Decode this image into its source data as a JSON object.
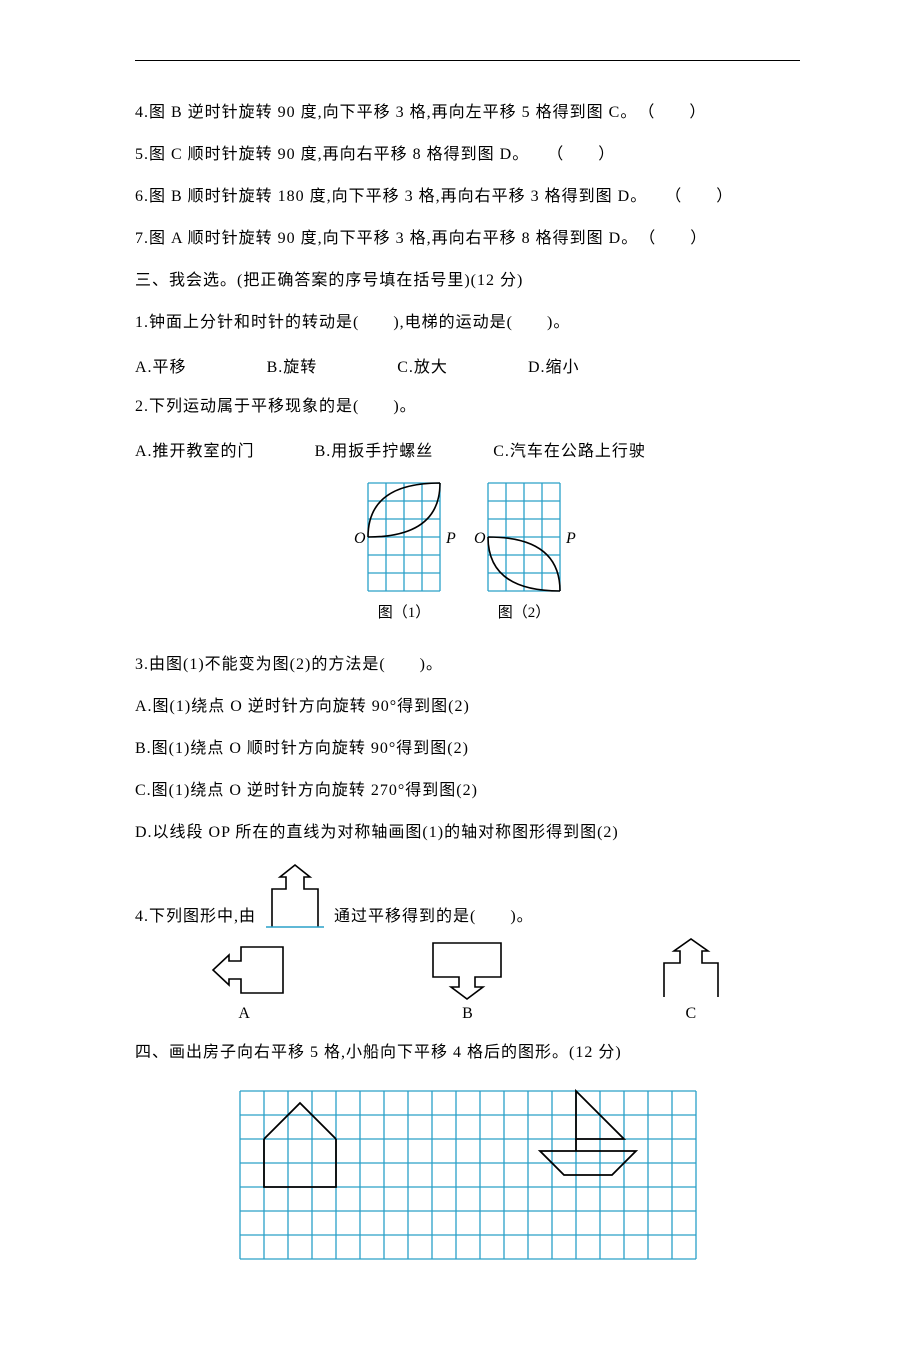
{
  "colors": {
    "grid": "#2aa0c8",
    "ink": "#000000",
    "bg": "#ffffff"
  },
  "tf": {
    "q4": "4.图 B 逆时针旋转 90 度,向下平移 3 格,再向左平移 5 格得到图 C。　（　　）",
    "q5": "5.图 C 顺时针旋转 90 度,再向右平移 8 格得到图 D。　　（　　）",
    "q6": "6.图 B 顺时针旋转 180 度,向下平移 3 格,再向右平移 3 格得到图 D。　　（　　）",
    "q7": "7.图 A 顺时针旋转 90 度,向下平移 3 格,再向右平移 8 格得到图 D。　（　　）"
  },
  "sec3": {
    "title": "三、我会选。(把正确答案的序号填在括号里)(12 分)",
    "q1": "1.钟面上分针和时针的转动是(　　),电梯的运动是(　　)。",
    "q1_opts": {
      "A": "A.平移",
      "B": "B.旋转",
      "C": "C.放大",
      "D": "D.缩小"
    },
    "q2": "2.下列运动属于平移现象的是(　　)。",
    "q2_opts": {
      "A": "A.推开教室的门",
      "B": "B.用扳手拧螺丝",
      "C": "C.汽车在公路上行驶"
    },
    "fig": {
      "grid_color": "#2aa0c8",
      "cell": 18,
      "cols": 4,
      "rows": 6,
      "labels": {
        "O": "O",
        "P": "P",
        "fig1": "图（1）",
        "fig2": "图（2）"
      }
    },
    "q3": "3.由图(1)不能变为图(2)的方法是(　　)。",
    "q3_opts": {
      "A": "A.图(1)绕点 O 逆时针方向旋转 90°得到图(2)",
      "B": "B.图(1)绕点 O 顺时针方向旋转 90°得到图(2)",
      "C": "C.图(1)绕点 O 逆时针方向旋转 270°得到图(2)",
      "D": "D.以线段 OP 所在的直线为对称轴画图(1)的轴对称图形得到图(2)"
    },
    "q4_pre": "4.下列图形中,由",
    "q4_post": "通过平移得到的是(　　)。",
    "q4_opts": {
      "A": "A",
      "B": "B",
      "C": "C"
    }
  },
  "sec4": {
    "title": "四、画出房子向右平移 5 格,小船向下平移 4 格后的图形。(12 分)",
    "grid": {
      "cell": 24,
      "cols": 19,
      "rows": 7,
      "grid_color": "#2aa0c8",
      "stroke_width": 1.3
    }
  }
}
